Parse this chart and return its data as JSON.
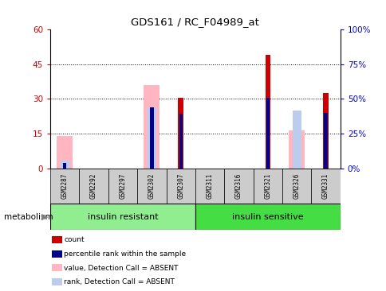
{
  "title": "GDS161 / RC_F04989_at",
  "samples": [
    "GSM2287",
    "GSM2292",
    "GSM2297",
    "GSM2302",
    "GSM2307",
    "GSM2311",
    "GSM2316",
    "GSM2321",
    "GSM2326",
    "GSM2331"
  ],
  "groups": [
    {
      "label": "insulin resistant",
      "indices": [
        0,
        1,
        2,
        3,
        4
      ],
      "color": "#90EE90"
    },
    {
      "label": "insulin sensitive",
      "indices": [
        5,
        6,
        7,
        8,
        9
      ],
      "color": "#44DD44"
    }
  ],
  "group_label_left": "metabolism",
  "red_bars": [
    0,
    0,
    0,
    0,
    30.5,
    0,
    0,
    49.0,
    0,
    32.5
  ],
  "pink_bars": [
    14.0,
    0,
    0,
    36.0,
    0,
    0,
    0,
    0,
    16.5,
    0
  ],
  "blue_bars": [
    2.5,
    0,
    0,
    26.5,
    23.5,
    0,
    0,
    30.5,
    0,
    24.0
  ],
  "light_blue_bars": [
    3.5,
    0,
    0,
    26.5,
    0,
    0,
    0,
    0,
    25.0,
    0
  ],
  "ylim_left": [
    0,
    60
  ],
  "ylim_right": [
    0,
    100
  ],
  "yticks_left": [
    0,
    15,
    30,
    45,
    60
  ],
  "yticks_right": [
    0,
    25,
    50,
    75,
    100
  ],
  "ytick_labels_right": [
    "0%",
    "25%",
    "50%",
    "75%",
    "100%"
  ],
  "left_tick_color": "#CC0000",
  "right_tick_color": "#0000CC",
  "pink_color": "#FFB6C1",
  "light_blue_color": "#BBCCEE",
  "red_color": "#CC0000",
  "blue_color": "#00008B",
  "sample_box_color": "#CCCCCC",
  "grid_dotted_yticks": [
    15,
    30,
    45
  ],
  "pink_bar_width": 0.55,
  "lb_bar_width": 0.3,
  "red_bar_width": 0.18,
  "blue_bar_width": 0.12,
  "legend_labels": [
    "count",
    "percentile rank within the sample",
    "value, Detection Call = ABSENT",
    "rank, Detection Call = ABSENT"
  ],
  "legend_colors": [
    "#CC0000",
    "#00008B",
    "#FFB6C1",
    "#BBCCEE"
  ]
}
